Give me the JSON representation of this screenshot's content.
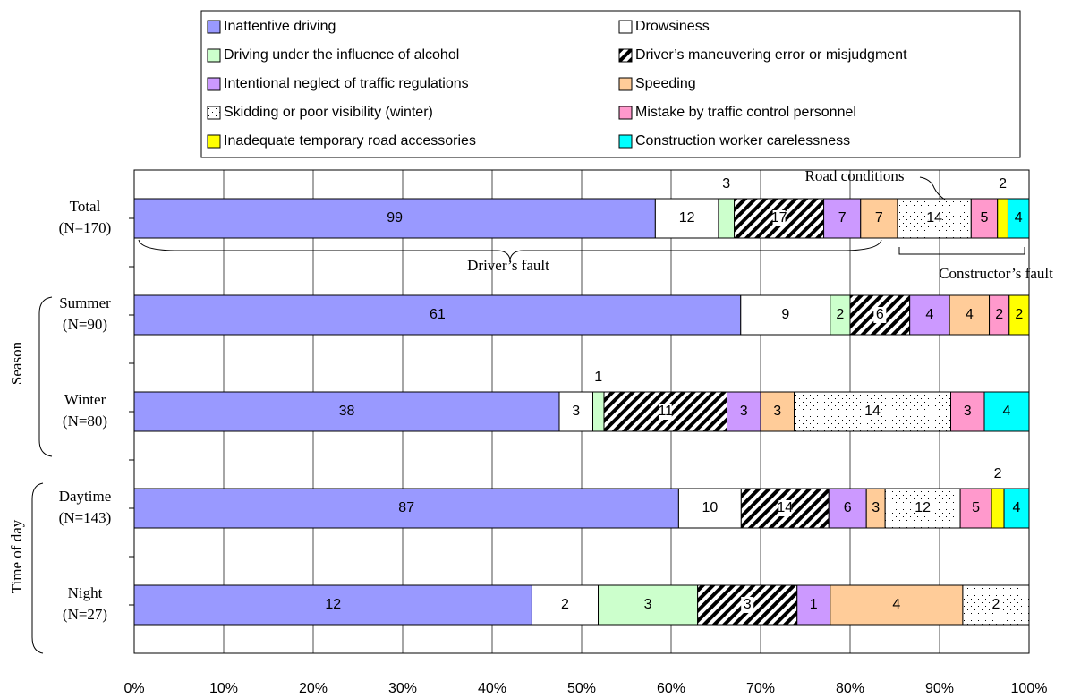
{
  "chart_data": {
    "type": "stacked_bar_100",
    "categories": [
      "Total",
      "Summer",
      "Winter",
      "Daytime",
      "Night"
    ],
    "n_labels": [
      "(N=170)",
      "(N=90)",
      "(N=80)",
      "(N=143)",
      "(N=27)"
    ],
    "groups": [
      {
        "label": "Season",
        "categories": [
          1,
          2
        ]
      },
      {
        "label": "Time of day",
        "categories": [
          3,
          4
        ]
      }
    ],
    "series": [
      {
        "name": "Inattentive driving",
        "color": "#9999ff",
        "values": [
          99,
          61,
          38,
          87,
          12
        ]
      },
      {
        "name": "Drowsiness",
        "color": "#ffffff",
        "values": [
          12,
          9,
          3,
          10,
          2
        ]
      },
      {
        "name": "Driving under the influence of alcohol",
        "color": "#ccffcc",
        "values": [
          3,
          2,
          1,
          null,
          3
        ]
      },
      {
        "name": "Driver’s maneuvering error or misjudgment",
        "color": "#000000",
        "pattern": "hatch",
        "values": [
          17,
          6,
          11,
          14,
          3
        ]
      },
      {
        "name": "Intentional neglect of traffic regulations",
        "color": "#cc99ff",
        "values": [
          7,
          4,
          3,
          6,
          1
        ]
      },
      {
        "name": "Speeding",
        "color": "#ffcc99",
        "values": [
          7,
          4,
          3,
          3,
          4
        ]
      },
      {
        "name": "Skidding or poor visibility (winter)",
        "color": "#000000",
        "pattern": "dots",
        "values": [
          14,
          null,
          14,
          12,
          2
        ]
      },
      {
        "name": "Mistake by traffic control personnel",
        "color": "#ff99cc",
        "values": [
          5,
          2,
          3,
          5,
          null
        ]
      },
      {
        "name": "Inadequate temporary road accessories",
        "color": "#ffff00",
        "values": [
          2,
          2,
          null,
          2,
          null
        ]
      },
      {
        "name": "Construction worker carelessness",
        "color": "#00ffff",
        "values": [
          4,
          null,
          4,
          4,
          null
        ]
      }
    ],
    "xlim": [
      0,
      100
    ],
    "xticks": [
      {
        "value": 0,
        "label": "0%"
      },
      {
        "value": 10,
        "label": "10%"
      },
      {
        "value": 20,
        "label": "20%"
      },
      {
        "value": 30,
        "label": "30%"
      },
      {
        "value": 40,
        "label": "40%"
      },
      {
        "value": 50,
        "label": "50%"
      },
      {
        "value": 60,
        "label": "60%"
      },
      {
        "value": 70,
        "label": "70%"
      },
      {
        "value": 80,
        "label": "80%"
      },
      {
        "value": 90,
        "label": "90%"
      },
      {
        "value": 100,
        "label": "100%"
      }
    ],
    "grid": true,
    "annotations": [
      "Driver’s fault",
      "Road conditions",
      "Constructor’s fault"
    ]
  }
}
